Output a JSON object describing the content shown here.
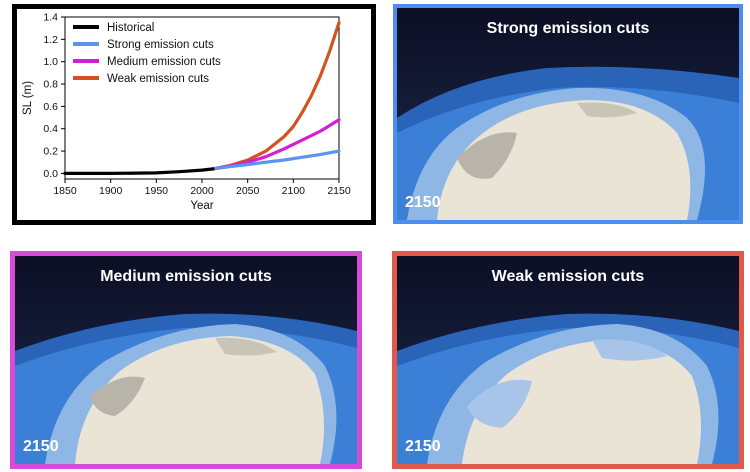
{
  "chart_data": {
    "type": "line",
    "xlabel": "Year",
    "ylabel": "SL (m)",
    "xlim": [
      1850,
      2150
    ],
    "ylim": [
      -0.05,
      1.4
    ],
    "xticks": [
      1850,
      1900,
      1950,
      2000,
      2050,
      2100,
      2150
    ],
    "yticks": [
      0.0,
      0.2,
      0.4,
      0.6,
      0.8,
      1.0,
      1.2,
      1.4
    ],
    "ytick_labels": [
      "0.0",
      "0.2",
      "0.4",
      "0.6",
      "0.8",
      "1.0",
      "1.2",
      "1.4"
    ],
    "legend_position": "top-left",
    "series": [
      {
        "name": "Historical",
        "color": "#000000",
        "x": [
          1850,
          1900,
          1950,
          1975,
          2000,
          2012
        ],
        "y": [
          0.0,
          0.0,
          0.005,
          0.015,
          0.03,
          0.04
        ]
      },
      {
        "name": "Strong emission cuts",
        "color": "#5b93ee",
        "x": [
          2012,
          2030,
          2050,
          2070,
          2090,
          2110,
          2130,
          2150
        ],
        "y": [
          0.04,
          0.06,
          0.08,
          0.1,
          0.12,
          0.145,
          0.17,
          0.2
        ]
      },
      {
        "name": "Medium emission cuts",
        "color": "#d21fd6",
        "x": [
          2012,
          2030,
          2050,
          2070,
          2090,
          2110,
          2130,
          2150
        ],
        "y": [
          0.04,
          0.065,
          0.1,
          0.15,
          0.22,
          0.3,
          0.38,
          0.48
        ]
      },
      {
        "name": "Weak emission cuts",
        "color": "#d4521f",
        "x": [
          2012,
          2030,
          2050,
          2070,
          2090,
          2100,
          2110,
          2120,
          2130,
          2140,
          2150
        ],
        "y": [
          0.04,
          0.07,
          0.12,
          0.2,
          0.33,
          0.42,
          0.55,
          0.7,
          0.88,
          1.1,
          1.35
        ]
      }
    ]
  },
  "scenarios": [
    {
      "title": "Strong emission cuts",
      "year": "2150",
      "border_color": "#4c8df0"
    },
    {
      "title": "Medium emission cuts",
      "year": "2150",
      "border_color": "#d74bd9"
    },
    {
      "title": "Weak emission cuts",
      "year": "2150",
      "border_color": "#e05a4c"
    }
  ]
}
